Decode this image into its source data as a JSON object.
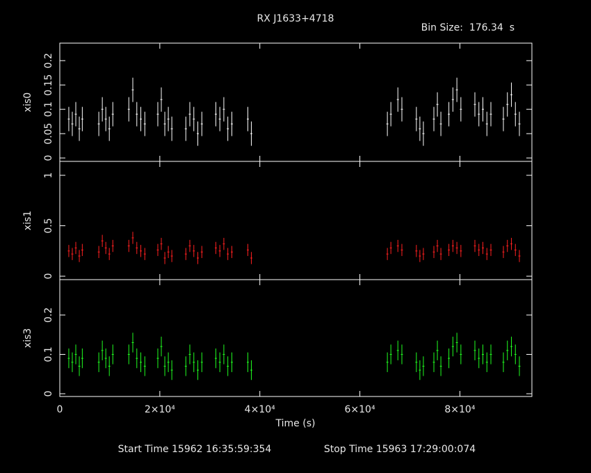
{
  "title": "RX J1633+4718",
  "bin_size_text": "Bin Size:  176.34  s",
  "footer": {
    "start": "Start Time 15962 16:35:59:354",
    "stop": "Stop Time 15963 17:29:00:074"
  },
  "chart_data": [
    {
      "type": "errorbar",
      "ylabel": "xis0",
      "color": "#ffffff",
      "x": [
        1800,
        2500,
        3200,
        3900,
        4500,
        7800,
        8500,
        9200,
        9900,
        10600,
        13800,
        14600,
        15400,
        16200,
        17000,
        19600,
        20300,
        21000,
        21700,
        22400,
        25200,
        26000,
        26800,
        27600,
        28400,
        31200,
        32000,
        32800,
        33600,
        34400,
        37600,
        38300,
        65500,
        66200,
        67600,
        68400,
        71300,
        72000,
        72700,
        74800,
        75500,
        76200,
        77800,
        78600,
        79400,
        80200,
        83000,
        83800,
        84600,
        85400,
        86200,
        88700,
        89500,
        90300,
        91100,
        91900
      ],
      "values": [
        0.08,
        0.07,
        0.09,
        0.06,
        0.08,
        0.07,
        0.1,
        0.08,
        0.06,
        0.09,
        0.1,
        0.14,
        0.09,
        0.08,
        0.07,
        0.09,
        0.12,
        0.07,
        0.08,
        0.06,
        0.06,
        0.09,
        0.08,
        0.05,
        0.07,
        0.09,
        0.08,
        0.1,
        0.06,
        0.07,
        0.08,
        0.05,
        0.07,
        0.09,
        0.12,
        0.1,
        0.08,
        0.06,
        0.05,
        0.08,
        0.11,
        0.07,
        0.09,
        0.12,
        0.14,
        0.1,
        0.11,
        0.09,
        0.1,
        0.07,
        0.09,
        0.08,
        0.11,
        0.13,
        0.09,
        0.07
      ],
      "error": 0.025,
      "ylim": [
        -0.007,
        0.236
      ],
      "yticks": [
        0,
        0.05,
        0.1,
        0.15,
        0.2
      ]
    },
    {
      "type": "errorbar",
      "ylabel": "xis1",
      "color": "#ff2020",
      "x": [
        1800,
        2500,
        3200,
        3900,
        4500,
        7800,
        8500,
        9200,
        9900,
        10600,
        13800,
        14600,
        15400,
        16200,
        17000,
        19600,
        20300,
        21000,
        21700,
        22400,
        25200,
        26000,
        26800,
        27600,
        28400,
        31200,
        32000,
        32800,
        33600,
        34400,
        37600,
        38300,
        65500,
        66200,
        67600,
        68400,
        71300,
        72000,
        72700,
        74800,
        75500,
        76200,
        77800,
        78600,
        79400,
        80200,
        83000,
        83800,
        84600,
        85400,
        86200,
        88700,
        89500,
        90300,
        91100,
        91900
      ],
      "values": [
        0.25,
        0.22,
        0.28,
        0.2,
        0.26,
        0.24,
        0.35,
        0.28,
        0.22,
        0.3,
        0.3,
        0.38,
        0.28,
        0.25,
        0.22,
        0.26,
        0.32,
        0.18,
        0.24,
        0.2,
        0.22,
        0.3,
        0.25,
        0.18,
        0.24,
        0.28,
        0.25,
        0.32,
        0.22,
        0.24,
        0.26,
        0.18,
        0.22,
        0.28,
        0.3,
        0.26,
        0.25,
        0.2,
        0.22,
        0.24,
        0.3,
        0.22,
        0.26,
        0.3,
        0.28,
        0.25,
        0.3,
        0.26,
        0.28,
        0.22,
        0.26,
        0.24,
        0.3,
        0.32,
        0.26,
        0.2
      ],
      "error": 0.06,
      "ylim": [
        -0.034,
        1.138
      ],
      "yticks": [
        0,
        0.5,
        1
      ]
    },
    {
      "type": "errorbar",
      "ylabel": "xis3",
      "color": "#20ff20",
      "x": [
        1800,
        2500,
        3200,
        3900,
        4500,
        7800,
        8500,
        9200,
        9900,
        10600,
        13800,
        14600,
        15400,
        16200,
        17000,
        19600,
        20300,
        21000,
        21700,
        22400,
        25200,
        26000,
        26800,
        27600,
        28400,
        31200,
        32000,
        32800,
        33600,
        34400,
        37600,
        38300,
        65500,
        66200,
        67600,
        68400,
        71300,
        72000,
        72700,
        74800,
        75500,
        76200,
        77800,
        78600,
        79400,
        80200,
        83000,
        83800,
        84600,
        85400,
        86200,
        88700,
        89500,
        90300,
        91100,
        91900
      ],
      "values": [
        0.09,
        0.08,
        0.1,
        0.07,
        0.09,
        0.08,
        0.11,
        0.09,
        0.07,
        0.1,
        0.1,
        0.13,
        0.09,
        0.08,
        0.07,
        0.09,
        0.12,
        0.07,
        0.08,
        0.06,
        0.07,
        0.1,
        0.08,
        0.06,
        0.08,
        0.09,
        0.08,
        0.1,
        0.07,
        0.08,
        0.08,
        0.06,
        0.08,
        0.1,
        0.11,
        0.1,
        0.08,
        0.06,
        0.07,
        0.08,
        0.11,
        0.07,
        0.09,
        0.12,
        0.13,
        0.1,
        0.11,
        0.09,
        0.1,
        0.08,
        0.1,
        0.08,
        0.11,
        0.12,
        0.1,
        0.07
      ],
      "error": 0.025,
      "ylim": [
        -0.007,
        0.29
      ],
      "yticks": [
        0,
        0.1,
        0.2
      ],
      "xlabel": "Time (s)",
      "xlim": [
        0,
        94400
      ],
      "xticks": [
        0,
        {
          "value": 20000,
          "label": "2×10⁴"
        },
        {
          "value": 40000,
          "label": "4×10⁴"
        },
        {
          "value": 60000,
          "label": "6×10⁴"
        },
        {
          "value": 80000,
          "label": "8×10⁴"
        }
      ]
    }
  ]
}
